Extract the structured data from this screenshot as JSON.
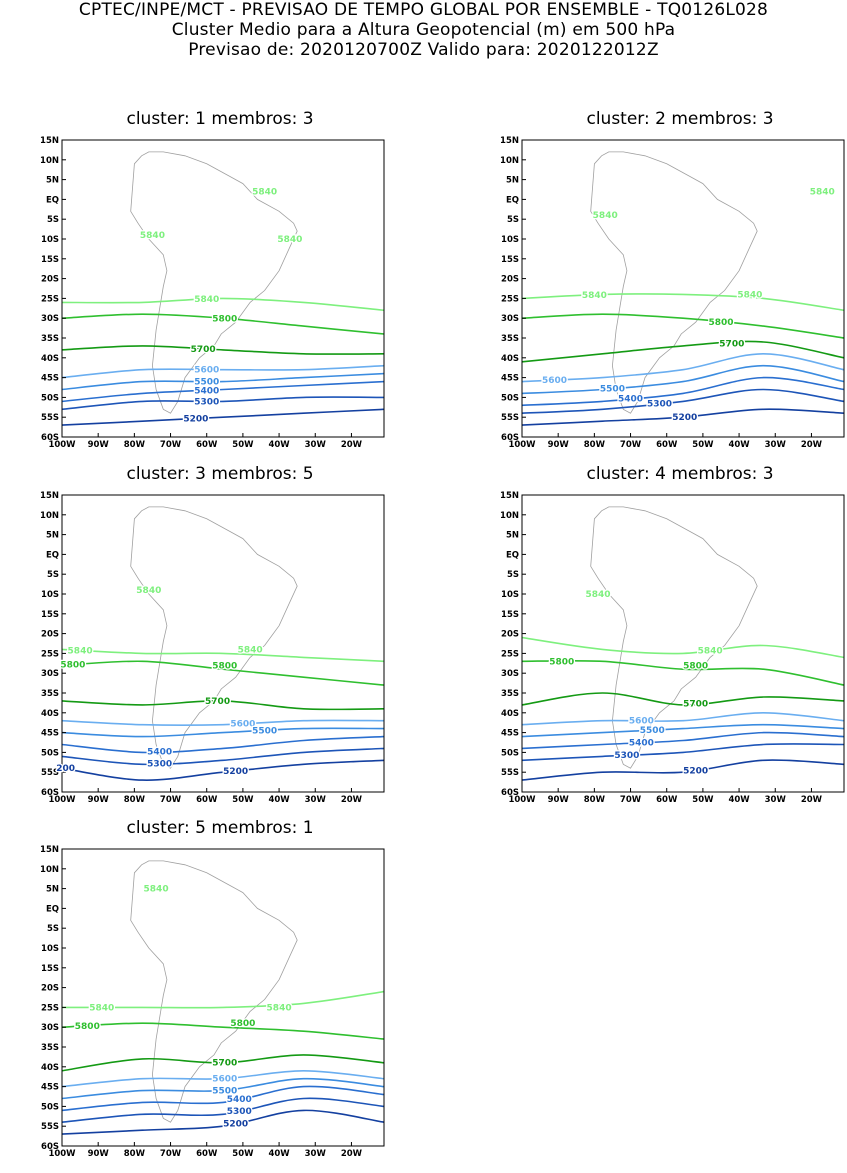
{
  "header": {
    "line1": "CPTEC/INPE/MCT - PREVISAO DE TEMPO GLOBAL POR ENSEMBLE - TQ0126L028",
    "line2": "Cluster Medio para a Altura Geopotencial (m) em 500 hPa",
    "line3": "Previsao de: 2020120700Z    Valido para: 2020122012Z"
  },
  "axes": {
    "lat_labels": [
      "15N",
      "10N",
      "5N",
      "EQ",
      "5S",
      "10S",
      "15S",
      "20S",
      "25S",
      "30S",
      "35S",
      "40S",
      "45S",
      "50S",
      "55S",
      "60S"
    ],
    "lon_labels": [
      "100W",
      "90W",
      "80W",
      "70W",
      "60W",
      "50W",
      "40W",
      "30W",
      "20W"
    ]
  },
  "colors": {
    "5840": "#7ef07e",
    "5800": "#2fbf2f",
    "5700": "#149a14",
    "5600": "#6aaef0",
    "5500": "#3b8ce0",
    "5400": "#2a6fd0",
    "5300": "#1d55b8",
    "5200": "#1440a0",
    "5100": "#3a2a90",
    "coast": "#a0a0a0"
  },
  "panels": [
    {
      "title": "cluster:  1   membros:  3",
      "contours": [
        {
          "level": "5840",
          "label": "5840",
          "lat": [
            -26,
            -26,
            -25,
            -26,
            -28
          ],
          "lonlab": -60
        },
        {
          "level": "5800",
          "label": "5800",
          "lat": [
            -30,
            -29,
            -30,
            -32,
            -34
          ],
          "lonlab": -55
        },
        {
          "level": "5700",
          "label": "5700",
          "lat": [
            -38,
            -37,
            -38,
            -39,
            -39
          ],
          "lonlab": -61
        },
        {
          "level": "5600",
          "label": "5600",
          "lat": [
            -45,
            -43,
            -43,
            -43,
            -42
          ],
          "lonlab": -60
        },
        {
          "level": "5500",
          "label": "5500",
          "lat": [
            -48,
            -46,
            -46,
            -45,
            -44
          ],
          "lonlab": -60
        },
        {
          "level": "5400",
          "label": "5400",
          "lat": [
            -51,
            -49,
            -48,
            -47,
            -46
          ],
          "lonlab": -60
        },
        {
          "level": "5300",
          "label": "5300",
          "lat": [
            -53,
            -51,
            -51,
            -50,
            -50
          ],
          "lonlab": -60
        },
        {
          "level": "5200",
          "label": "5200",
          "lat": [
            -57,
            -56,
            -55,
            -54,
            -53
          ],
          "lonlab": -63
        }
      ],
      "extra_labels": [
        {
          "text": "5840",
          "lon": -75,
          "lat": -9
        },
        {
          "text": "5840",
          "lon": -44,
          "lat": 2
        },
        {
          "text": "5840",
          "lon": -37,
          "lat": -10
        }
      ]
    },
    {
      "title": "cluster:  2   membros:  3",
      "contours": [
        {
          "level": "5840",
          "label": "5840",
          "lat": [
            -25,
            -24,
            -24,
            -25,
            -28
          ],
          "lonlab": -80
        },
        {
          "level": "5800",
          "label": "5800",
          "lat": [
            -30,
            -29,
            -30,
            -32,
            -35
          ],
          "lonlab": -45
        },
        {
          "level": "5700",
          "label": "5700",
          "lat": [
            -41,
            -39,
            -37,
            -36,
            -40
          ],
          "lonlab": -42
        },
        {
          "level": "5600",
          "label": "5600",
          "lat": [
            -46,
            -45,
            -43,
            -39,
            -43
          ],
          "lonlab": -91
        },
        {
          "level": "5500",
          "label": "5500",
          "lat": [
            -49,
            -48,
            -46,
            -42,
            -46
          ],
          "lonlab": -75
        },
        {
          "level": "5400",
          "label": "5400",
          "lat": [
            -52,
            -51,
            -49,
            -45,
            -48
          ],
          "lonlab": -70
        },
        {
          "level": "5300",
          "label": "5300",
          "lat": [
            -54,
            -53,
            -51,
            -48,
            -51
          ],
          "lonlab": -62
        },
        {
          "level": "5200",
          "label": "5200",
          "lat": [
            -57,
            -56,
            -55,
            -53,
            -54
          ],
          "lonlab": -55
        }
      ],
      "extra_labels": [
        {
          "text": "5840",
          "lon": -77,
          "lat": -4
        },
        {
          "text": "5840",
          "lon": -17,
          "lat": 2
        },
        {
          "text": "5840",
          "lon": -37,
          "lat": -24
        }
      ]
    },
    {
      "title": "cluster:  3   membros:  5",
      "contours": [
        {
          "level": "5840",
          "label": "5840",
          "lat": [
            -24,
            -25,
            -25,
            -26,
            -27
          ],
          "lonlab": -95
        },
        {
          "level": "5800",
          "label": "5800",
          "lat": [
            -28,
            -27,
            -29,
            -31,
            -33
          ],
          "lonlab": -97
        },
        {
          "level": "5700",
          "label": "5700",
          "lat": [
            -37,
            -38,
            -37,
            -39,
            -39
          ],
          "lonlab": -57
        },
        {
          "level": "5600",
          "label": "5600",
          "lat": [
            -42,
            -43,
            -43,
            -42,
            -42
          ],
          "lonlab": -50
        },
        {
          "level": "5500",
          "label": "5500",
          "lat": [
            -45,
            -46,
            -45,
            -44,
            -44
          ],
          "lonlab": -44
        },
        {
          "level": "5400",
          "label": "5400",
          "lat": [
            -48,
            -50,
            -49,
            -47,
            -46
          ],
          "lonlab": -73
        },
        {
          "level": "5300",
          "label": "5300",
          "lat": [
            -51,
            -53,
            -52,
            -50,
            -49
          ],
          "lonlab": -73
        },
        {
          "level": "5200",
          "label": "5200",
          "lat": [
            -54,
            -57,
            -55,
            -53,
            -52
          ],
          "lonlab": -52
        }
      ],
      "extra_labels": [
        {
          "text": "5840",
          "lon": -76,
          "lat": -9
        },
        {
          "text": "5840",
          "lon": -48,
          "lat": -24
        },
        {
          "text": "5800",
          "lon": -55,
          "lat": -28
        },
        {
          "text": "200",
          "lon": -99,
          "lat": -54
        }
      ]
    },
    {
      "title": "cluster:  4   membros:  3",
      "contours": [
        {
          "level": "5840",
          "label": "5840",
          "lat": [
            -21,
            -24,
            -25,
            -23,
            -26
          ],
          "lonlab": -48
        },
        {
          "level": "5800",
          "label": "5800",
          "lat": [
            -27,
            -27,
            -29,
            -29,
            -33
          ],
          "lonlab": -89
        },
        {
          "level": "5700",
          "label": "5700",
          "lat": [
            -38,
            -35,
            -38,
            -36,
            -37
          ],
          "lonlab": -52
        },
        {
          "level": "5600",
          "label": "5600",
          "lat": [
            -43,
            -42,
            -42,
            -40,
            -42
          ],
          "lonlab": -67
        },
        {
          "level": "5500",
          "label": "5500",
          "lat": [
            -46,
            -45,
            -44,
            -43,
            -44
          ],
          "lonlab": -64
        },
        {
          "level": "5400",
          "label": "5400",
          "lat": [
            -49,
            -48,
            -47,
            -45,
            -46
          ],
          "lonlab": -67
        },
        {
          "level": "5300",
          "label": "5300",
          "lat": [
            -52,
            -51,
            -50,
            -48,
            -48
          ],
          "lonlab": -71
        },
        {
          "level": "5200",
          "label": "5200",
          "lat": [
            -57,
            -55,
            -55,
            -52,
            -53
          ],
          "lonlab": -52
        }
      ],
      "extra_labels": [
        {
          "text": "5840",
          "lon": -79,
          "lat": -10
        },
        {
          "text": "5800",
          "lon": -52,
          "lat": -28
        }
      ]
    },
    {
      "title": "cluster:  5   membros:  1",
      "contours": [
        {
          "level": "5840",
          "label": "5840",
          "lat": [
            -25,
            -25,
            -25,
            -24,
            -21
          ],
          "lonlab": -89
        },
        {
          "level": "5800",
          "label": "5800",
          "lat": [
            -30,
            -29,
            -30,
            -31,
            -33
          ],
          "lonlab": -93
        },
        {
          "level": "5700",
          "label": "5700",
          "lat": [
            -41,
            -38,
            -39,
            -37,
            -39
          ],
          "lonlab": -55
        },
        {
          "level": "5600",
          "label": "5600",
          "lat": [
            -45,
            -43,
            -43,
            -41,
            -43
          ],
          "lonlab": -55
        },
        {
          "level": "5500",
          "label": "5500",
          "lat": [
            -48,
            -46,
            -46,
            -43,
            -45
          ],
          "lonlab": -55
        },
        {
          "level": "5400",
          "label": "5400",
          "lat": [
            -51,
            -49,
            -49,
            -45,
            -47
          ],
          "lonlab": -51
        },
        {
          "level": "5300",
          "label": "5300",
          "lat": [
            -54,
            -52,
            -52,
            -48,
            -50
          ],
          "lonlab": -51
        },
        {
          "level": "5200",
          "label": "5200",
          "lat": [
            -57,
            -56,
            -55,
            -51,
            -54
          ],
          "lonlab": -52
        }
      ],
      "extra_labels": [
        {
          "text": "5840",
          "lon": -74,
          "lat": 5
        },
        {
          "text": "5840",
          "lon": -40,
          "lat": -25
        },
        {
          "text": "5800",
          "lon": -50,
          "lat": -29
        }
      ]
    }
  ]
}
